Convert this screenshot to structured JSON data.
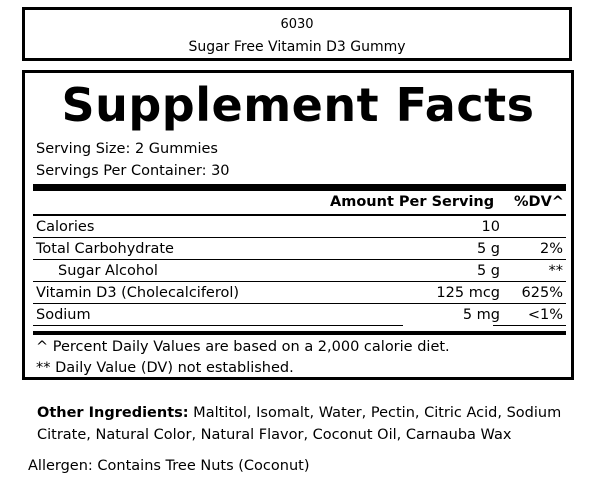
{
  "product": {
    "code": "6030",
    "name": "Sugar Free Vitamin D3 Gummy"
  },
  "facts": {
    "title": "Supplement Facts",
    "serving_size": "Serving Size: 2 Gummies",
    "servings_per_container": "Servings Per Container: 30",
    "header_amount": "Amount Per Serving",
    "header_dv": "%DV^",
    "rows": [
      {
        "name": "Calories",
        "amount": "10",
        "dv": ""
      },
      {
        "name": "Total Carbohydrate",
        "amount": "5 g",
        "dv": "2%"
      },
      {
        "name": "Sugar Alcohol",
        "amount": "5 g",
        "dv": "**"
      },
      {
        "name": "Vitamin D3 (Cholecalciferol)",
        "amount": "125 mcg",
        "dv": "625%"
      },
      {
        "name": "Sodium",
        "amount": "5 mg",
        "dv": "<1%"
      }
    ],
    "footnote_1": "^ Percent Daily Values are based on a 2,000 calorie diet.",
    "footnote_2": "** Daily Value (DV) not established."
  },
  "ingredients": {
    "label": "Other Ingredients:",
    "text": " Maltitol, Isomalt, Water, Pectin, Citric Acid, Sodium Citrate, Natural Color, Natural Flavor, Coconut Oil, Carnauba Wax"
  },
  "allergen": "Allergen: Contains Tree Nuts (Coconut)"
}
